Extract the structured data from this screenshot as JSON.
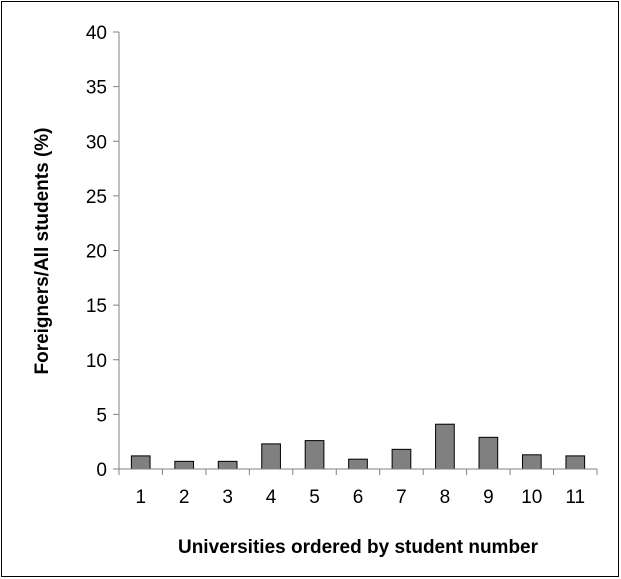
{
  "chart_data": {
    "type": "bar",
    "categories": [
      "1",
      "2",
      "3",
      "4",
      "5",
      "6",
      "7",
      "8",
      "9",
      "10",
      "11"
    ],
    "values": [
      1.2,
      0.7,
      0.7,
      2.3,
      2.6,
      0.9,
      1.8,
      4.1,
      2.9,
      1.3,
      1.2
    ],
    "xlabel": "Universities ordered by student number",
    "ylabel": "Foreigners/All students (%)",
    "ylim": [
      0,
      40
    ],
    "yticks": [
      "0",
      "5",
      "10",
      "15",
      "20",
      "25",
      "30",
      "35",
      "40"
    ],
    "grid": false,
    "legend": "none",
    "bar_color": "#808080",
    "bar_edge_color": "#000000"
  }
}
